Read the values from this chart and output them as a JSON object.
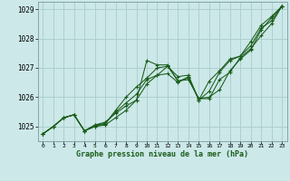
{
  "title": "Graphe pression niveau de la mer (hPa)",
  "xlim": [
    -0.5,
    23.5
  ],
  "ylim": [
    1024.5,
    1029.25
  ],
  "yticks": [
    1025,
    1026,
    1027,
    1028,
    1029
  ],
  "xticks": [
    0,
    1,
    2,
    3,
    4,
    5,
    6,
    7,
    8,
    9,
    10,
    11,
    12,
    13,
    14,
    15,
    16,
    17,
    18,
    19,
    20,
    21,
    22,
    23
  ],
  "bg_color": "#cce8e8",
  "grid_color": "#aacccc",
  "line_color": "#1a5c1a",
  "series": [
    [
      1024.75,
      1025.0,
      1025.3,
      1025.4,
      1024.85,
      1025.0,
      1025.05,
      1025.3,
      1025.55,
      1025.9,
      1027.25,
      1027.1,
      1027.1,
      1026.55,
      1026.65,
      1025.95,
      1026.0,
      1026.25,
      1026.9,
      1027.3,
      1027.6,
      1028.3,
      1028.7,
      1029.1
    ],
    [
      1024.75,
      1025.0,
      1025.3,
      1025.4,
      1024.85,
      1025.05,
      1025.1,
      1025.55,
      1026.0,
      1026.35,
      1026.65,
      1027.0,
      1027.05,
      1026.7,
      1026.75,
      1025.9,
      1026.55,
      1026.9,
      1027.3,
      1027.4,
      1027.9,
      1028.45,
      1028.75,
      1029.1
    ],
    [
      1024.75,
      1025.0,
      1025.3,
      1025.4,
      1024.85,
      1025.0,
      1025.1,
      1025.5,
      1025.8,
      1026.1,
      1026.6,
      1026.75,
      1026.8,
      1026.5,
      1026.7,
      1025.9,
      1026.2,
      1026.85,
      1027.25,
      1027.4,
      1027.75,
      1028.35,
      1028.6,
      1029.1
    ],
    [
      1024.75,
      1025.0,
      1025.3,
      1025.4,
      1024.85,
      1025.05,
      1025.15,
      1025.45,
      1025.7,
      1025.9,
      1026.45,
      1026.75,
      1027.05,
      1026.55,
      1026.6,
      1025.95,
      1025.95,
      1026.6,
      1026.85,
      1027.35,
      1027.65,
      1028.1,
      1028.5,
      1029.1
    ]
  ]
}
